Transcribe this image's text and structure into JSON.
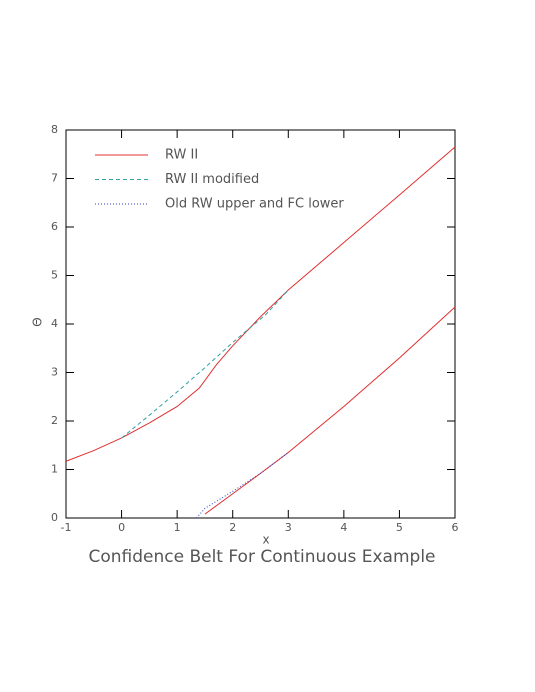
{
  "chart_data": {
    "type": "line",
    "title": "Confidence Belt For Continuous Example",
    "x_label": "x",
    "y_label": "Θ",
    "xlim": [
      -1,
      6
    ],
    "ylim": [
      0,
      8
    ],
    "xticks": [
      -1,
      0,
      1,
      2,
      3,
      4,
      5,
      6
    ],
    "yticks": [
      0,
      1,
      2,
      3,
      4,
      5,
      6,
      7,
      8
    ],
    "legend": "top-left",
    "series": [
      {
        "name": "RW II",
        "color": "#e03030",
        "dash": "solid",
        "x": [
          -1,
          -0.5,
          0,
          0.5,
          1,
          1.4,
          1.7,
          2,
          2.5,
          3,
          4,
          5,
          6,
          1.35,
          1.5,
          2,
          2.5,
          3,
          4,
          5,
          6
        ],
        "values": [
          1.17,
          1.39,
          1.65,
          1.96,
          2.3,
          2.68,
          3.15,
          3.55,
          4.15,
          4.7,
          5.68,
          6.66,
          7.65,
          null,
          0.08,
          0.5,
          0.92,
          1.35,
          2.3,
          3.3,
          4.35
        ]
      },
      {
        "name": "RW II modified",
        "color": "#30a0a0",
        "dash": "dashed",
        "x": [
          0,
          0.5,
          1,
          1.5,
          2,
          2.6,
          3
        ],
        "values": [
          1.65,
          2.12,
          2.6,
          3.1,
          3.62,
          4.2,
          4.7
        ]
      },
      {
        "name": "Old RW upper and FC lower",
        "color": "#3040c0",
        "dash": "dotted",
        "x": [
          1.35,
          1.5,
          2,
          2.5,
          3
        ],
        "values": [
          0,
          0.2,
          0.55,
          0.92,
          1.35
        ]
      }
    ]
  }
}
